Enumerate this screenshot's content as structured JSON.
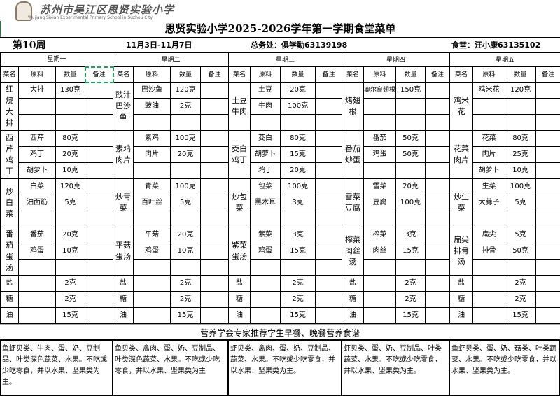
{
  "header": {
    "logo_cn": "苏州市吴江区思贤实验小学",
    "logo_en": "Wujiang Sixian Experimental Primary School in Suzhou City",
    "title": "思贤实验小学2025-2026学年第一学期食堂菜单",
    "week": "第10周",
    "dates": "11月3日-11月7日",
    "office": "总务处：俱学勤63139198",
    "canteen": "食堂：汪小康63135102"
  },
  "columns": [
    "菜名",
    "原料",
    "数量",
    "备注"
  ],
  "days": [
    {
      "name": "星期一",
      "dishes": [
        {
          "name": "红烧大排",
          "items": [
            [
              "大排",
              "130克"
            ],
            [
              "",
              ""
            ],
            [
              "",
              ""
            ]
          ]
        },
        {
          "name": "西芹鸡丁",
          "items": [
            [
              "西芹",
              "80克"
            ],
            [
              "鸡丁",
              "20克"
            ],
            [
              "胡萝卜",
              "10克"
            ]
          ]
        },
        {
          "name": "炒白菜",
          "items": [
            [
              "白菜",
              "120克"
            ],
            [
              "油面筋",
              "5克"
            ],
            [
              "",
              ""
            ]
          ]
        },
        {
          "name": "番茄蛋汤",
          "items": [
            [
              "番茄",
              "20克"
            ],
            [
              "鸡蛋",
              "10克"
            ],
            [
              "",
              ""
            ]
          ]
        }
      ],
      "seasonings": [
        [
          "盐",
          "2克"
        ],
        [
          "糖",
          "2克"
        ],
        [
          "油",
          "15克"
        ]
      ]
    },
    {
      "name": "星期二",
      "dishes": [
        {
          "name": "豉汁巴沙鱼",
          "items": [
            [
              "巴沙鱼",
              "120克"
            ],
            [
              "豉油",
              "2克"
            ],
            [
              "",
              ""
            ]
          ]
        },
        {
          "name": "素鸡肉片",
          "items": [
            [
              "素鸡",
              "100克"
            ],
            [
              "肉片",
              "20克"
            ],
            [
              "",
              ""
            ]
          ]
        },
        {
          "name": "炒青菜",
          "items": [
            [
              "青菜",
              "100克"
            ],
            [
              "百叶丝",
              "5克"
            ],
            [
              "",
              ""
            ]
          ]
        },
        {
          "name": "平菇蛋汤",
          "items": [
            [
              "平菇",
              "20克"
            ],
            [
              "鸡蛋",
              "10克"
            ],
            [
              "",
              ""
            ]
          ]
        }
      ],
      "seasonings": [
        [
          "盐",
          "2克"
        ],
        [
          "糖",
          "2克"
        ],
        [
          "油",
          "15克"
        ]
      ]
    },
    {
      "name": "星期三",
      "dishes": [
        {
          "name": "土豆牛肉",
          "items": [
            [
              "土豆",
              "20克"
            ],
            [
              "牛肉",
              "100克"
            ],
            [
              "",
              ""
            ]
          ]
        },
        {
          "name": "茭白鸡丁",
          "items": [
            [
              "茭白",
              "80克"
            ],
            [
              "胡萝卜",
              "15克"
            ],
            [
              "鸡丁",
              "20克"
            ]
          ]
        },
        {
          "name": "炒包菜",
          "items": [
            [
              "包菜",
              "100克"
            ],
            [
              "黑木耳",
              "3克"
            ],
            [
              "",
              ""
            ]
          ]
        },
        {
          "name": "紫菜蛋汤",
          "items": [
            [
              "紫菜",
              "3克"
            ],
            [
              "鸡蛋",
              "15克"
            ],
            [
              "",
              ""
            ]
          ]
        }
      ],
      "seasonings": [
        [
          "盐",
          "2克"
        ],
        [
          "糖",
          "2克"
        ],
        [
          "油",
          "15克"
        ]
      ]
    },
    {
      "name": "星期四",
      "dishes": [
        {
          "name": "烤翅根",
          "items": [
            [
              "奥尔良翅根",
              "150克"
            ],
            [
              "",
              ""
            ],
            [
              "",
              ""
            ]
          ]
        },
        {
          "name": "番茄炒蛋",
          "items": [
            [
              "番茄",
              "50克"
            ],
            [
              "鸡蛋",
              "50克"
            ],
            [
              "",
              ""
            ]
          ]
        },
        {
          "name": "雪菜豆腐",
          "items": [
            [
              "雪菜",
              "20克"
            ],
            [
              "豆腐",
              "100克"
            ],
            [
              "",
              ""
            ]
          ]
        },
        {
          "name": "榨菜肉丝汤",
          "items": [
            [
              "榨菜",
              "3克"
            ],
            [
              "肉丝",
              "15克"
            ],
            [
              "",
              ""
            ]
          ]
        }
      ],
      "seasonings": [
        [
          "盐",
          "2克"
        ],
        [
          "糖",
          "2克"
        ],
        [
          "油",
          "15克"
        ]
      ]
    },
    {
      "name": "星期五",
      "dishes": [
        {
          "name": "鸡米花",
          "items": [
            [
              "鸡米花",
              "120克"
            ],
            [
              "",
              ""
            ],
            [
              "",
              ""
            ]
          ]
        },
        {
          "name": "花菜肉片",
          "items": [
            [
              "花菜",
              "80克"
            ],
            [
              "肉片",
              "25克"
            ],
            [
              "胡萝卜",
              "10克"
            ]
          ]
        },
        {
          "name": "炒生菜",
          "items": [
            [
              "生菜",
              "100克"
            ],
            [
              "大蒜子",
              "5克"
            ],
            [
              "",
              ""
            ]
          ]
        },
        {
          "name": "扁尖排骨汤",
          "items": [
            [
              "扁尖",
              "5克"
            ],
            [
              "排骨",
              "50克"
            ],
            [
              "",
              ""
            ]
          ]
        }
      ],
      "seasonings": [
        [
          "盐",
          "2克"
        ],
        [
          "糖",
          "2克"
        ],
        [
          "油",
          "15克"
        ]
      ]
    }
  ],
  "nutrition": {
    "title": "营养学会专家推荐学生早餐、晚餐营养食谱",
    "texts": [
      "鱼虾贝类、牛肉、蛋、奶、豆制品、叶类深色蔬菜、水果。不吃或少吃零食，并以水果、坚果类为主。",
      "鱼贝类、禽肉、蛋、奶、豆制品、叶类深色蔬菜、水果。不吃或少吃零食，并以水果、坚果类为主",
      "虾贝类、禽肉、蛋、奶、豆制品、蔬菜、水果。不吃或少吃零食，并以水果、坚果类为主。",
      "虾贝类、蛋、奶、豆制品、叶类蔬菜、水果。不吃或少吃零食，并以水果、坚果类为主。",
      "鱼虾贝类、蛋、奶、菇类、叶类蔬菜、水果。不吃或少吃零食，并以水果、坚果类为主。"
    ]
  }
}
